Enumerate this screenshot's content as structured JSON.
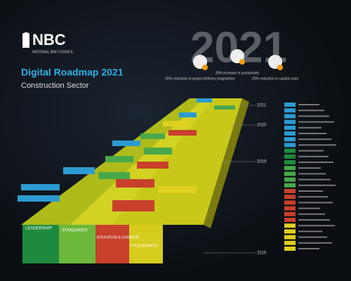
{
  "header": {
    "brand": "NBC",
    "brand_subtitle": "NATIONAL BIM COUNCIL",
    "title": "Digital Roadmap 2021",
    "subtitle": "Construction Sector"
  },
  "target": {
    "year": "2021",
    "goals": [
      "20% reduction in project delivery programme",
      "20% increase in productivity",
      "20% reduction in capital costs"
    ]
  },
  "timeline": {
    "years": [
      "2021",
      "2020",
      "2019",
      "2016"
    ]
  },
  "pillars": [
    "LEADERSHIP",
    "STANDARDS",
    "EDUCATION & LEARNING",
    "PROCUREMENT"
  ]
}
